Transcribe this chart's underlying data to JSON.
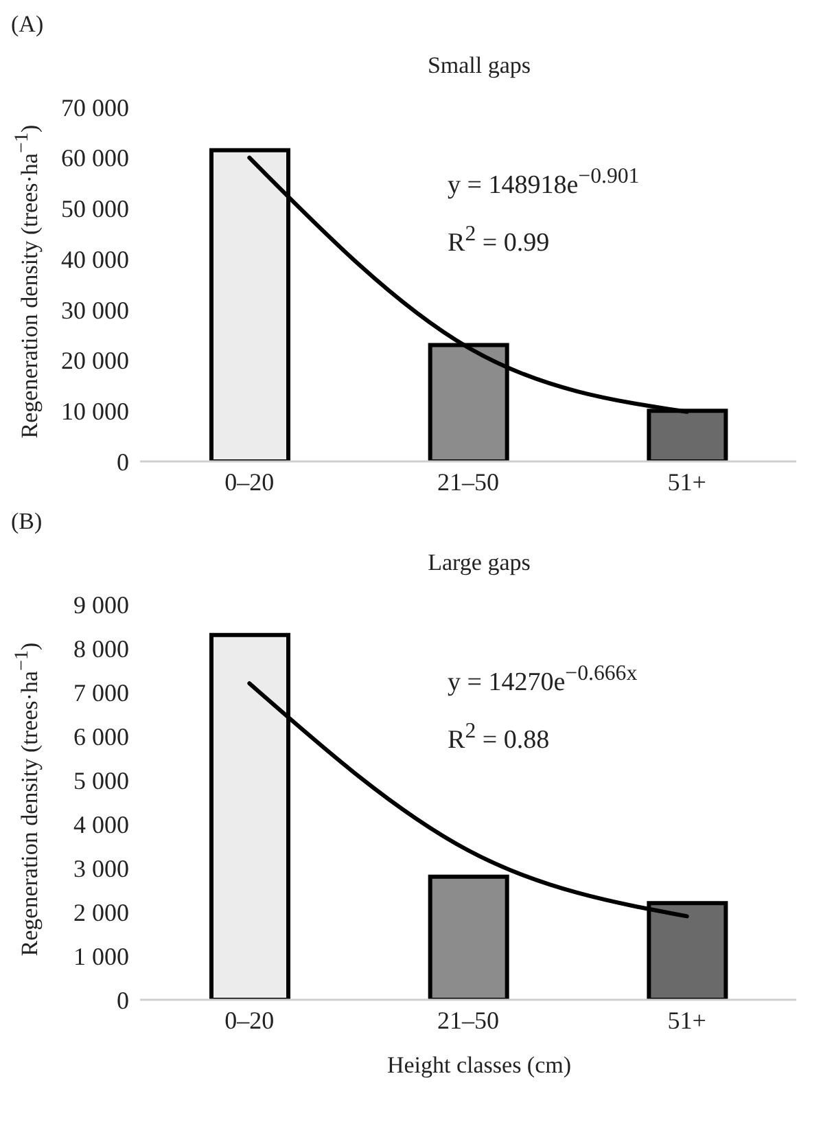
{
  "chart_data": [
    {
      "type": "bar",
      "title": "Small gaps",
      "ylabel": "Regeneration density (trees·ha$^{−1}$)",
      "categories": [
        "0–20",
        "21–50",
        "51+"
      ],
      "series": [
        {
          "values": [
            61500,
            23000,
            10000
          ],
          "colors": [
            "#ececec",
            "#8c8c8c",
            "#6a6a6a"
          ]
        },
        {
          "type": "line",
          "color": "#000000",
          "values": [
            60000,
            22500,
            9800
          ]
        }
      ],
      "ylim": [
        0,
        70000
      ],
      "yticks": [
        {
          "value": 0,
          "label": "0"
        },
        {
          "value": 10000,
          "label": "10 000"
        },
        {
          "value": 20000,
          "label": "20 000"
        },
        {
          "value": 30000,
          "label": "30 000"
        },
        {
          "value": 40000,
          "label": "40 000"
        },
        {
          "value": 50000,
          "label": "50 000"
        },
        {
          "value": 60000,
          "label": "60 000"
        },
        {
          "value": 70000,
          "label": "70 000"
        }
      ],
      "grid": false,
      "annotations": [
        "(A)",
        "y = 148918e$^{−0.901}$",
        "R$^{2}$ = 0.99"
      ]
    },
    {
      "type": "bar",
      "title": "Large gaps",
      "xlabel": "Height classes (cm)",
      "ylabel": "Regeneration density (trees·ha$^{−1}$)",
      "categories": [
        "0–20",
        "21–50",
        "51+"
      ],
      "series": [
        {
          "values": [
            8300,
            2800,
            2200
          ],
          "colors": [
            "#ececec",
            "#8c8c8c",
            "#6a6a6a"
          ]
        },
        {
          "type": "line",
          "color": "#000000",
          "values": [
            7200,
            3400,
            1900
          ]
        }
      ],
      "ylim": [
        0,
        9000
      ],
      "yticks": [
        {
          "value": 0,
          "label": "0"
        },
        {
          "value": 1000,
          "label": "1 000"
        },
        {
          "value": 2000,
          "label": "2 000"
        },
        {
          "value": 3000,
          "label": "3 000"
        },
        {
          "value": 4000,
          "label": "4 000"
        },
        {
          "value": 5000,
          "label": "5 000"
        },
        {
          "value": 6000,
          "label": "6 000"
        },
        {
          "value": 7000,
          "label": "7 000"
        },
        {
          "value": 8000,
          "label": "8 000"
        },
        {
          "value": 9000,
          "label": "9 000"
        }
      ],
      "grid": false,
      "annotations": [
        "(B)",
        "y = 14270e$^{−0.666x}$",
        "R$^{2}$ = 0.88"
      ]
    }
  ]
}
